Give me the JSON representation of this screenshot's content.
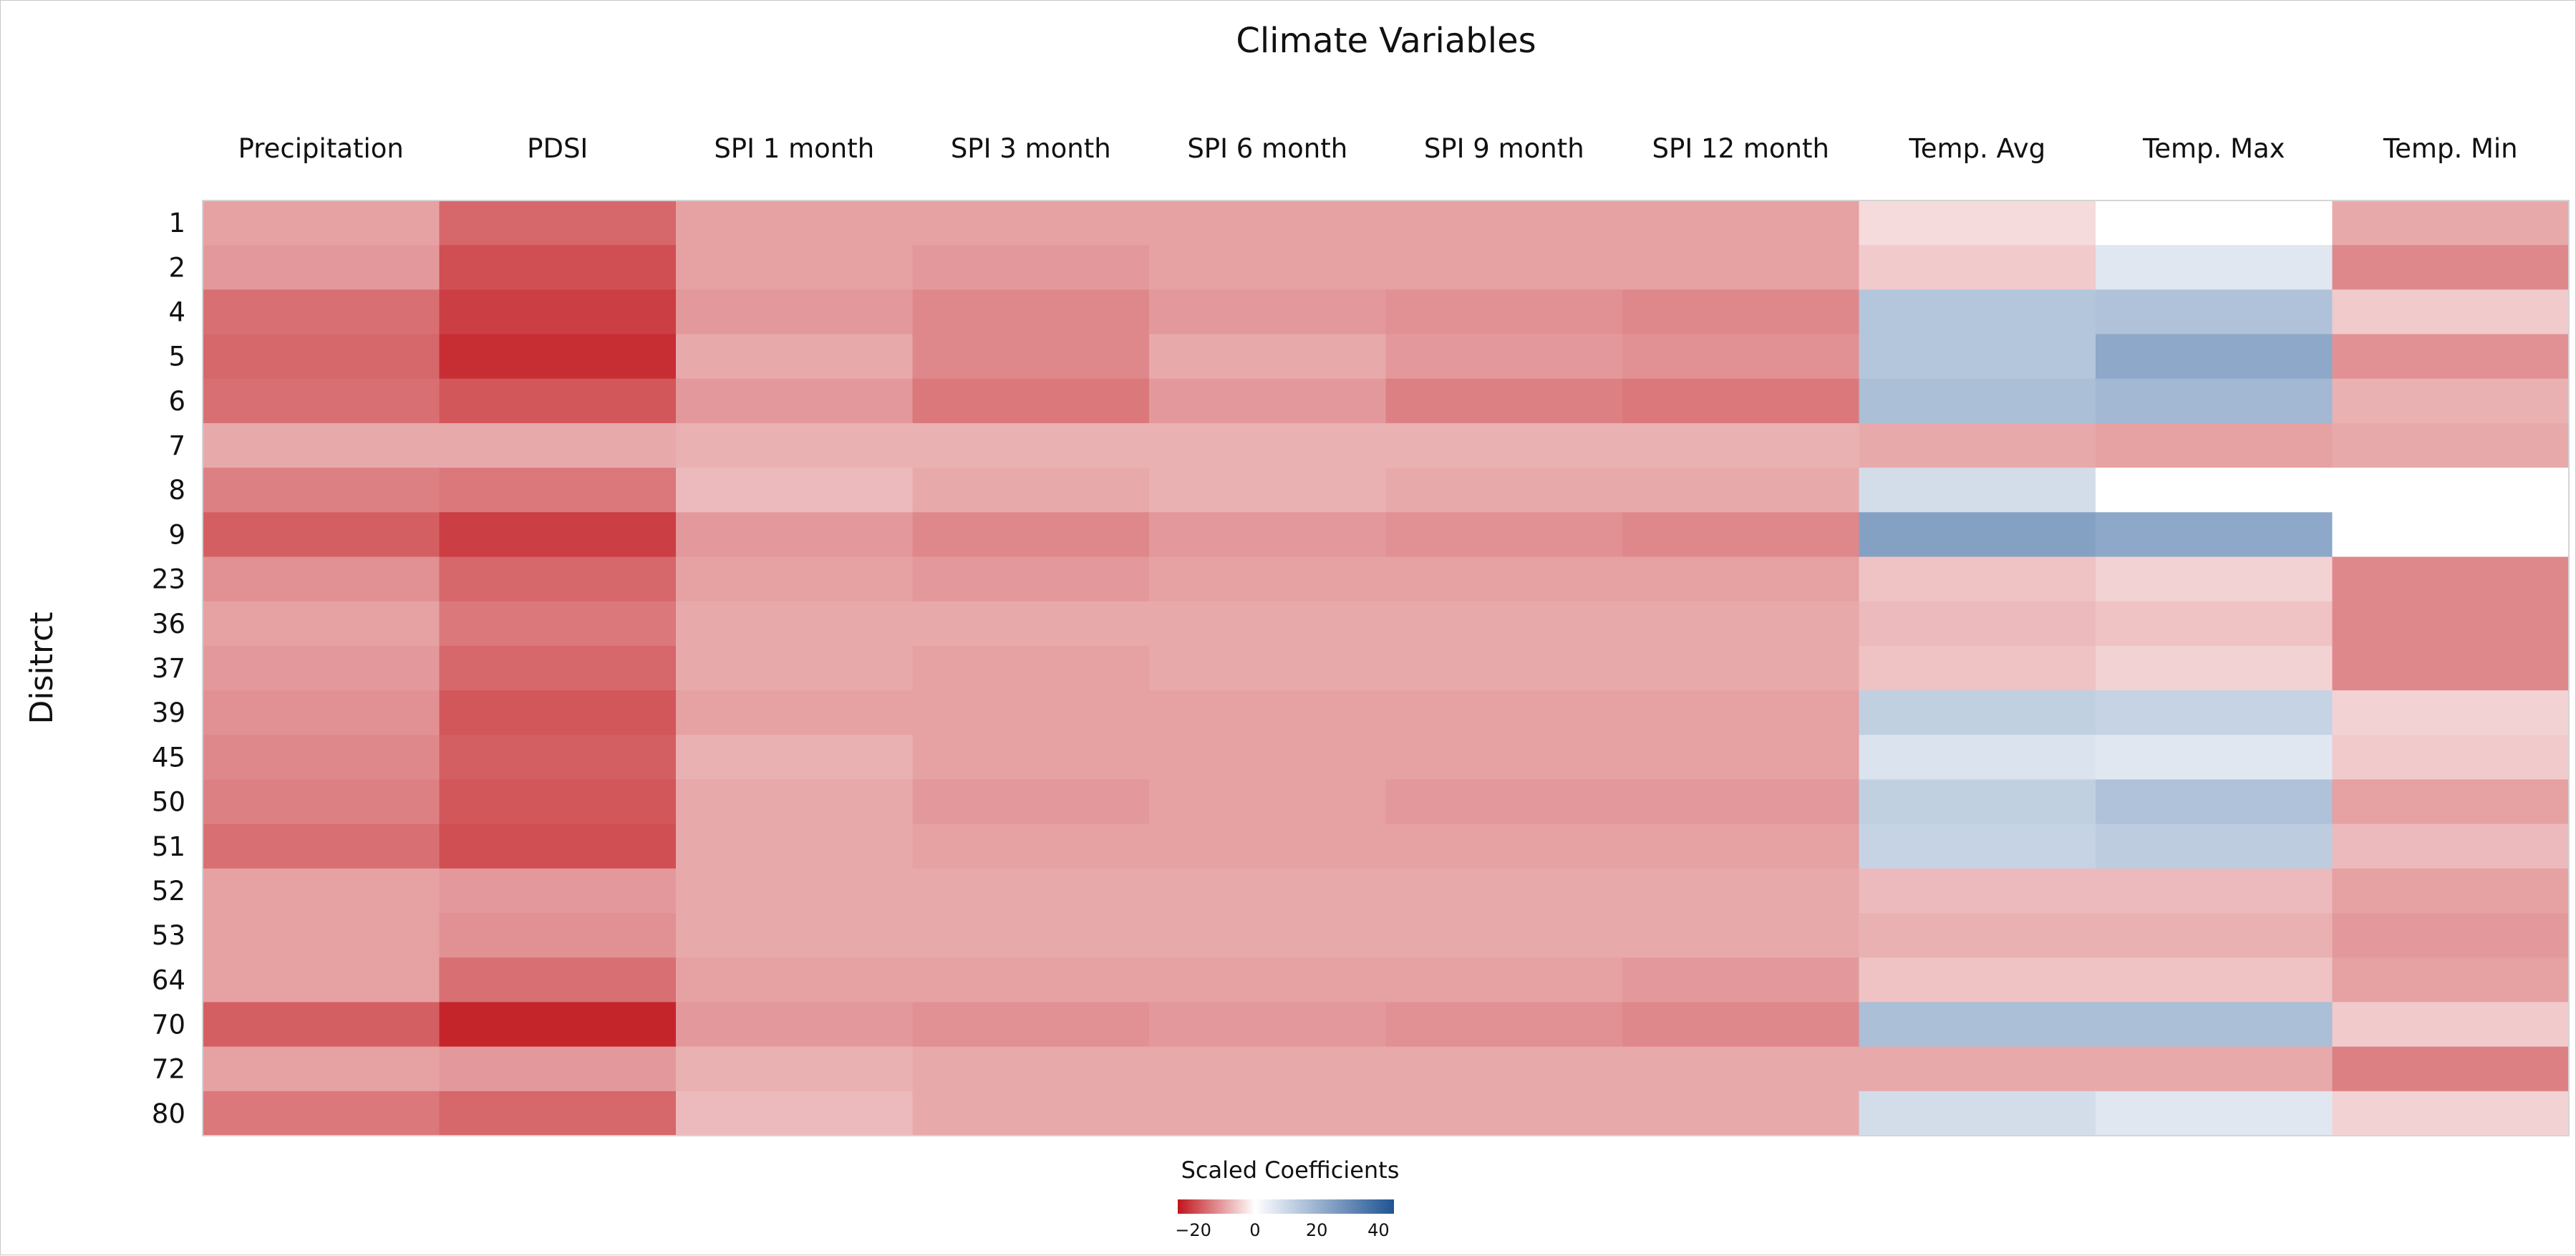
{
  "chart_data": {
    "type": "heatmap",
    "title": "Climate Variables",
    "xlabel": "",
    "ylabel": "Disitrct",
    "columns": [
      "Precipitation",
      "PDSI",
      "SPI 1 month",
      "SPI 3 month",
      "SPI 6 month",
      "SPI 9 month",
      "SPI 12 month",
      "Temp. Avg",
      "Temp. Max",
      "Temp. Min"
    ],
    "rows": [
      "1",
      "2",
      "4",
      "5",
      "6",
      "7",
      "8",
      "9",
      "23",
      "36",
      "37",
      "39",
      "45",
      "50",
      "51",
      "52",
      "53",
      "64",
      "70",
      "72",
      "80"
    ],
    "values": [
      [
        -8,
        -15,
        -8,
        -8,
        -8,
        -8,
        -8,
        -1,
        0,
        -7
      ],
      [
        -9,
        -18,
        -8,
        -9,
        -8,
        -8,
        -8,
        -3,
        1,
        -11
      ],
      [
        -14,
        -20,
        -9,
        -11,
        -9,
        -10,
        -11,
        11,
        12,
        -3
      ],
      [
        -15,
        -22,
        -7,
        -11,
        -7,
        -9,
        -10,
        11,
        20,
        -10
      ],
      [
        -14,
        -17,
        -9,
        -13,
        -9,
        -12,
        -13,
        13,
        15,
        -6
      ],
      [
        -7,
        -7,
        -6,
        -6,
        -6,
        -6,
        -6,
        -7,
        -8,
        -7
      ],
      [
        -12,
        -13,
        -5,
        -7,
        -6,
        -7,
        -7,
        4,
        0,
        0
      ],
      [
        -16,
        -20,
        -9,
        -11,
        -9,
        -10,
        -11,
        22,
        20,
        0
      ],
      [
        -10,
        -15,
        -8,
        -9,
        -8,
        -8,
        -8,
        -4,
        -2,
        -11
      ],
      [
        -8,
        -13,
        -7,
        -7,
        -7,
        -7,
        -7,
        -5,
        -4,
        -11
      ],
      [
        -9,
        -15,
        -7,
        -8,
        -7,
        -7,
        -7,
        -4,
        -2,
        -11
      ],
      [
        -10,
        -17,
        -8,
        -8,
        -8,
        -8,
        -8,
        8,
        7,
        -2
      ],
      [
        -11,
        -16,
        -6,
        -8,
        -8,
        -8,
        -8,
        2,
        1,
        -3
      ],
      [
        -12,
        -17,
        -7,
        -9,
        -8,
        -9,
        -9,
        8,
        12,
        -8
      ],
      [
        -14,
        -18,
        -7,
        -8,
        -8,
        -8,
        -8,
        7,
        9,
        -5
      ],
      [
        -8,
        -9,
        -7,
        -7,
        -7,
        -7,
        -7,
        -5,
        -5,
        -8
      ],
      [
        -8,
        -10,
        -7,
        -7,
        -7,
        -7,
        -7,
        -6,
        -6,
        -9
      ],
      [
        -8,
        -14,
        -8,
        -8,
        -8,
        -8,
        -9,
        -4,
        -4,
        -8
      ],
      [
        -16,
        -23,
        -9,
        -10,
        -9,
        -10,
        -11,
        13,
        13,
        -3
      ],
      [
        -8,
        -9,
        -6,
        -7,
        -7,
        -7,
        -7,
        -7,
        -7,
        -12
      ],
      [
        -13,
        -15,
        -5,
        -7,
        -7,
        -7,
        -7,
        4,
        1,
        -2
      ]
    ],
    "legend": {
      "title": "Scaled Coefficients",
      "ticks": [
        "−20",
        "0",
        "20",
        "40"
      ],
      "range": [
        -25,
        45
      ],
      "colors": {
        "negative_end": "#c0151b",
        "neutral": "#ffffff",
        "positive_end": "#1f5494"
      }
    }
  }
}
